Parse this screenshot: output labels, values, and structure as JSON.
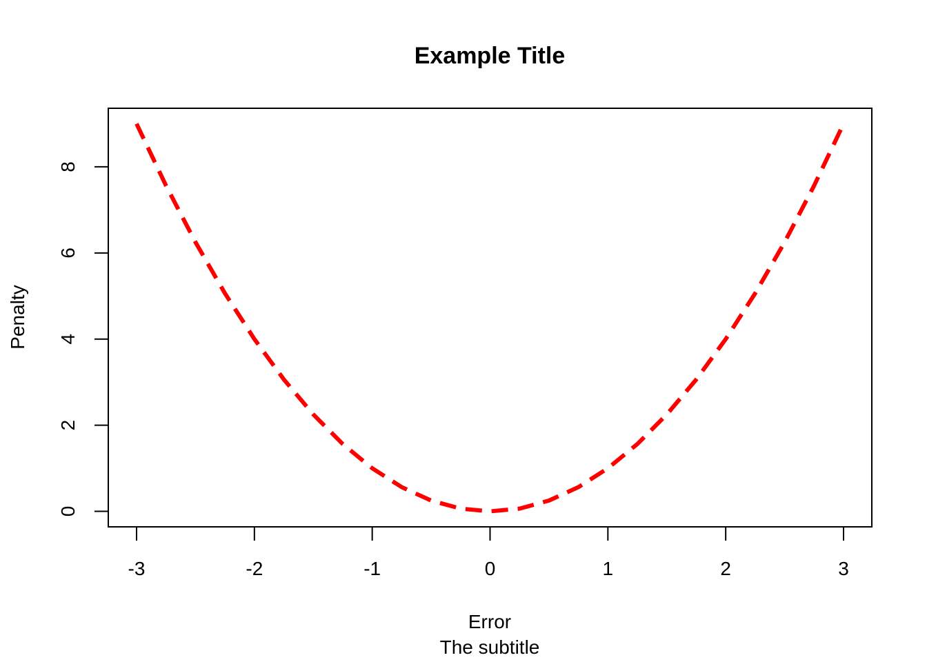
{
  "chart_data": {
    "type": "line",
    "title": "Example Title",
    "subtitle": "The subtitle",
    "xlabel": "Error",
    "ylabel": "Penalty",
    "xlim": [
      -3.24,
      3.24
    ],
    "ylim": [
      -0.36,
      9.36
    ],
    "xticks": [
      -3,
      -2,
      -1,
      0,
      1,
      2,
      3
    ],
    "yticks": [
      0,
      2,
      4,
      6,
      8
    ],
    "grid": false,
    "legend": "none",
    "series": [
      {
        "color": "#ff0000",
        "line_style": "dashed",
        "x": [
          -3,
          -2.75,
          -2.5,
          -2.25,
          -2,
          -1.75,
          -1.5,
          -1.25,
          -1,
          -0.75,
          -0.5,
          -0.25,
          0,
          0.25,
          0.5,
          0.75,
          1,
          1.25,
          1.5,
          1.75,
          2,
          2.25,
          2.5,
          2.75,
          3
        ],
        "y": [
          9,
          7.5625,
          6.25,
          5.0625,
          4,
          3.0625,
          2.25,
          1.5625,
          1,
          0.5625,
          0.25,
          0.0625,
          0,
          0.0625,
          0.25,
          0.5625,
          1,
          1.5625,
          2.25,
          3.0625,
          4,
          5.0625,
          6.25,
          7.5625,
          9
        ]
      }
    ]
  }
}
